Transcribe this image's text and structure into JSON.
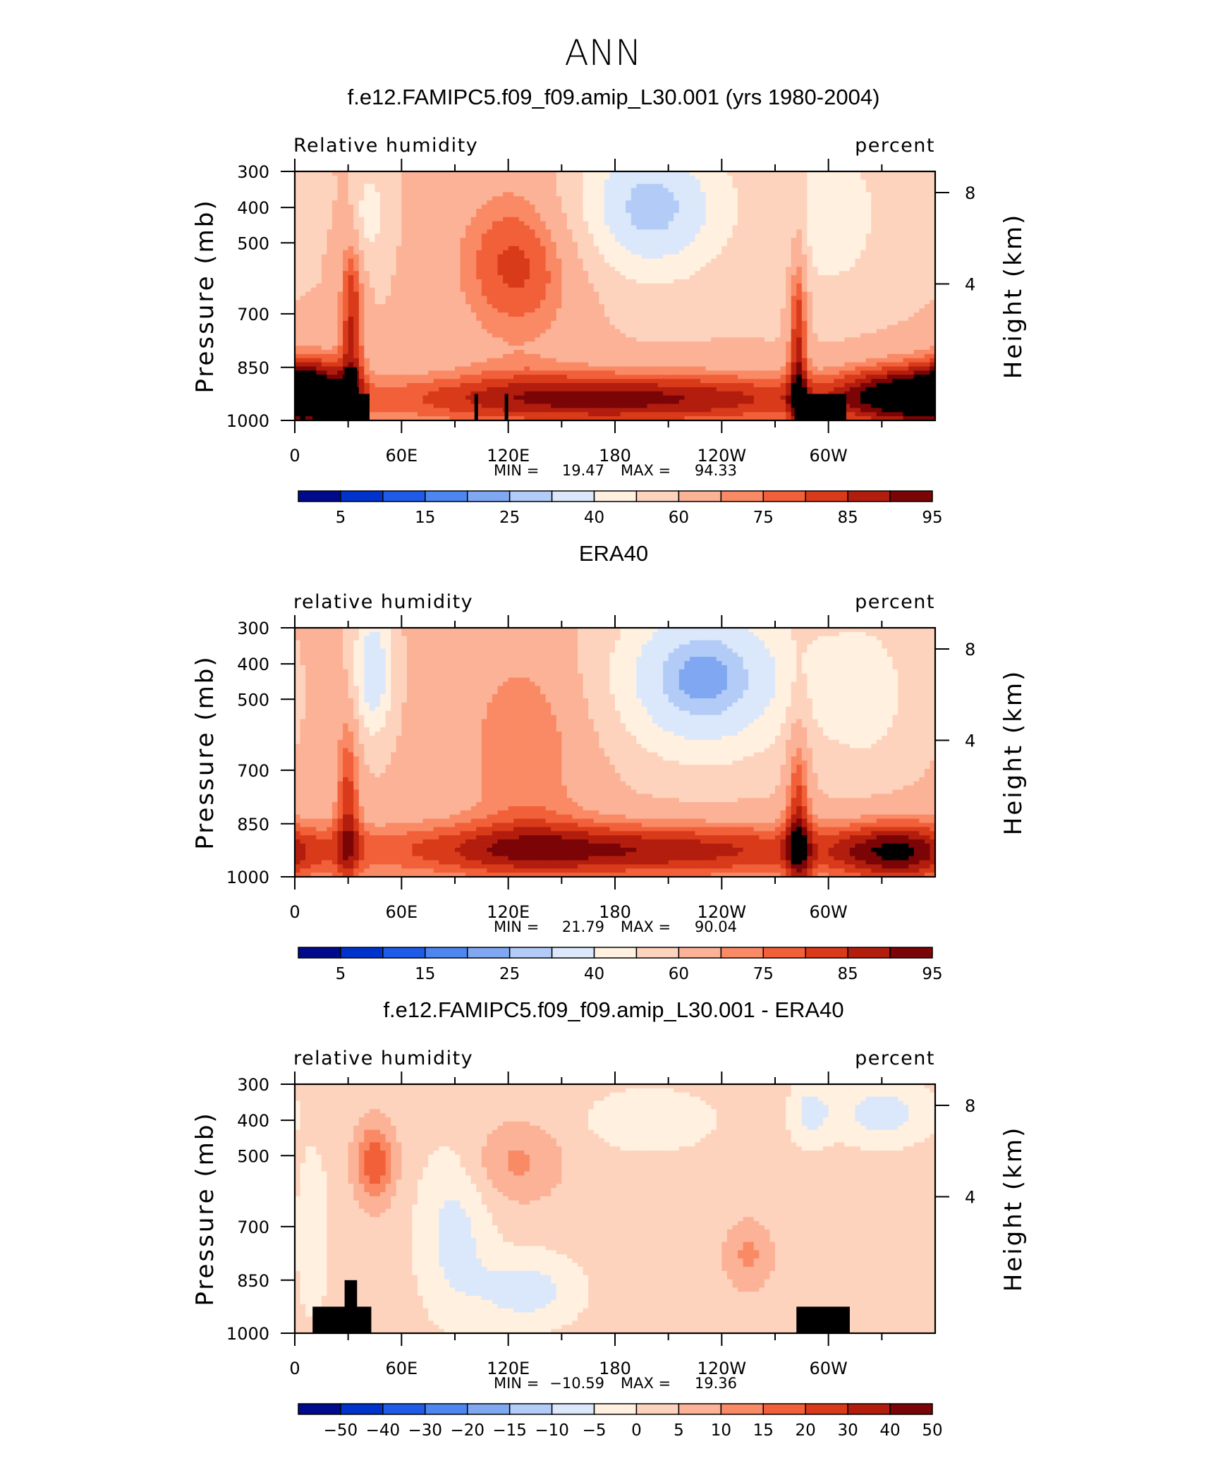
{
  "figure_title": "ANN",
  "colors": {
    "std": [
      "#000a8c",
      "#0033cc",
      "#1f5be6",
      "#4d86f0",
      "#80a8f2",
      "#b3ccf7",
      "#dbe8fb",
      "#fff0e0",
      "#fdd3bd",
      "#fbb296",
      "#f98a65",
      "#f2603a",
      "#d93a1a",
      "#b21d0d",
      "#7a0406"
    ],
    "diff": [
      "#000a8c",
      "#0033cc",
      "#1f5be6",
      "#4d86f0",
      "#80a8f2",
      "#b3ccf7",
      "#dbe8fb",
      "#fff0e0",
      "#fdd3bd",
      "#fbb296",
      "#f98a65",
      "#f2603a",
      "#d93a1a",
      "#b21d0d",
      "#7a0406"
    ],
    "land": "#000000"
  },
  "chart_data": [
    {
      "type": "heatmap",
      "title": "f.e12.FAMIPC5.f09_f09.amip_L30.001 (yrs 1980-2004)",
      "left_label": "Relative humidity",
      "right_label": "percent",
      "ylabel": "Pressure (mb)",
      "y2label": "Height (km)",
      "x_ticks": [
        "0",
        "60E",
        "120E",
        "180",
        "120W",
        "60W"
      ],
      "y_ticks": [
        "300",
        "400",
        "500",
        "700",
        "850",
        "1000"
      ],
      "y2_ticks": [
        "8",
        "4"
      ],
      "xlim": [
        0,
        360
      ],
      "ylim": [
        1000,
        300
      ],
      "minmax": {
        "min_label": "MIN =",
        "min": "19.47",
        "max_label": "MAX =",
        "max": "94.33"
      },
      "colorbar_levels": [
        "5",
        "15",
        "25",
        "40",
        "60",
        "75",
        "85",
        "95"
      ],
      "contour_levels": [
        5,
        10,
        15,
        20,
        25,
        30,
        40,
        50,
        60,
        70,
        75,
        80,
        85,
        90,
        95
      ],
      "base_value": 60,
      "features": [
        {
          "lon": 200,
          "p": 400,
          "value": 26,
          "sx": 30,
          "sp": 140
        },
        {
          "lon": 300,
          "p": 420,
          "value": 42,
          "sx": 22,
          "sp": 160
        },
        {
          "lon": 40,
          "p": 420,
          "value": 43,
          "sx": 8,
          "sp": 100
        },
        {
          "lon": 125,
          "p": 560,
          "value": 82,
          "sx": 26,
          "sp": 170
        },
        {
          "lon": 32,
          "p": 700,
          "value": 85,
          "sx": 5,
          "sp": 220
        },
        {
          "lon": 283,
          "p": 750,
          "value": 86,
          "sx": 4,
          "sp": 250
        },
        {
          "lon": 180,
          "p": 940,
          "value": 92,
          "sx": 110,
          "sp": 60
        },
        {
          "lon": 10,
          "p": 920,
          "value": 88,
          "sx": 15,
          "sp": 80
        },
        {
          "lon": 340,
          "p": 930,
          "value": 90,
          "sx": 25,
          "sp": 70
        }
      ],
      "land_blocks": [
        {
          "lon0": 10,
          "lon1": 42,
          "p_top": 925
        },
        {
          "lon0": 28,
          "lon1": 35,
          "p_top": 850
        },
        {
          "lon0": 101,
          "lon1": 103,
          "p_top": 925
        },
        {
          "lon0": 118,
          "lon1": 120,
          "p_top": 925
        },
        {
          "lon0": 281,
          "lon1": 310,
          "p_top": 925
        }
      ]
    },
    {
      "type": "heatmap",
      "title": "ERA40",
      "left_label": "relative humidity",
      "right_label": "percent",
      "ylabel": "Pressure (mb)",
      "y2label": "Height (km)",
      "x_ticks": [
        "0",
        "60E",
        "120E",
        "180",
        "120W",
        "60W"
      ],
      "y_ticks": [
        "300",
        "400",
        "500",
        "700",
        "850",
        "1000"
      ],
      "y2_ticks": [
        "8",
        "4"
      ],
      "xlim": [
        0,
        360
      ],
      "ylim": [
        1000,
        300
      ],
      "minmax": {
        "min_label": "MIN =",
        "min": "21.79",
        "max_label": "MAX =",
        "max": "90.04"
      },
      "colorbar_levels": [
        "5",
        "15",
        "25",
        "40",
        "60",
        "75",
        "85",
        "95"
      ],
      "contour_levels": [
        5,
        10,
        15,
        20,
        25,
        30,
        40,
        50,
        60,
        70,
        75,
        80,
        85,
        90,
        95
      ],
      "base_value": 62,
      "features": [
        {
          "lon": 230,
          "p": 440,
          "value": 22,
          "sx": 36,
          "sp": 160
        },
        {
          "lon": 44,
          "p": 420,
          "value": 30,
          "sx": 8,
          "sp": 130
        },
        {
          "lon": 320,
          "p": 480,
          "value": 45,
          "sx": 22,
          "sp": 170
        },
        {
          "lon": 130,
          "p": 640,
          "value": 75,
          "sx": 26,
          "sp": 230
        },
        {
          "lon": 180,
          "p": 925,
          "value": 90,
          "sx": 120,
          "sp": 60
        },
        {
          "lon": 30,
          "p": 780,
          "value": 82,
          "sx": 5,
          "sp": 190
        },
        {
          "lon": 283,
          "p": 800,
          "value": 84,
          "sx": 5,
          "sp": 230
        },
        {
          "lon": 340,
          "p": 930,
          "value": 86,
          "sx": 25,
          "sp": 70
        }
      ],
      "land_blocks": []
    },
    {
      "type": "heatmap",
      "title": "f.e12.FAMIPC5.f09_f09.amip_L30.001 - ERA40",
      "left_label": "relative humidity",
      "right_label": "percent",
      "ylabel": "Pressure (mb)",
      "y2label": "Height (km)",
      "x_ticks": [
        "0",
        "60E",
        "120E",
        "180",
        "120W",
        "60W"
      ],
      "y_ticks": [
        "300",
        "400",
        "500",
        "700",
        "850",
        "1000"
      ],
      "y2_ticks": [
        "8",
        "4"
      ],
      "xlim": [
        0,
        360
      ],
      "ylim": [
        1000,
        300
      ],
      "minmax": {
        "min_label": "MIN =",
        "min": "−10.59",
        "max_label": "MAX =",
        "max": "19.36"
      },
      "colorbar_levels": [
        "−50",
        "−40",
        "−30",
        "−20",
        "−15",
        "−10",
        "−5",
        "0",
        "5",
        "10",
        "15",
        "20",
        "30",
        "40",
        "50"
      ],
      "contour_levels": [
        -50,
        -40,
        -30,
        -20,
        -15,
        -10,
        -5,
        0,
        5,
        10,
        15,
        20,
        30,
        40,
        50
      ],
      "base_value": 2,
      "features": [
        {
          "lon": 45,
          "p": 520,
          "value": 19,
          "sx": 8,
          "sp": 80
        },
        {
          "lon": 125,
          "p": 520,
          "value": 11,
          "sx": 18,
          "sp": 80
        },
        {
          "lon": 255,
          "p": 780,
          "value": 11,
          "sx": 10,
          "sp": 70
        },
        {
          "lon": 90,
          "p": 720,
          "value": -7,
          "sx": 14,
          "sp": 160
        },
        {
          "lon": 130,
          "p": 880,
          "value": -8,
          "sx": 20,
          "sp": 70
        },
        {
          "lon": 330,
          "p": 380,
          "value": -8,
          "sx": 18,
          "sp": 60
        },
        {
          "lon": 290,
          "p": 380,
          "value": -7,
          "sx": 8,
          "sp": 60
        },
        {
          "lon": 10,
          "p": 720,
          "value": -5,
          "sx": 6,
          "sp": 150
        },
        {
          "lon": 200,
          "p": 400,
          "value": -4,
          "sx": 25,
          "sp": 60
        }
      ],
      "land_blocks": [
        {
          "lon0": 10,
          "lon1": 43,
          "p_top": 925
        },
        {
          "lon0": 28,
          "lon1": 35,
          "p_top": 850
        },
        {
          "lon0": 282,
          "lon1": 312,
          "p_top": 925
        }
      ]
    }
  ]
}
